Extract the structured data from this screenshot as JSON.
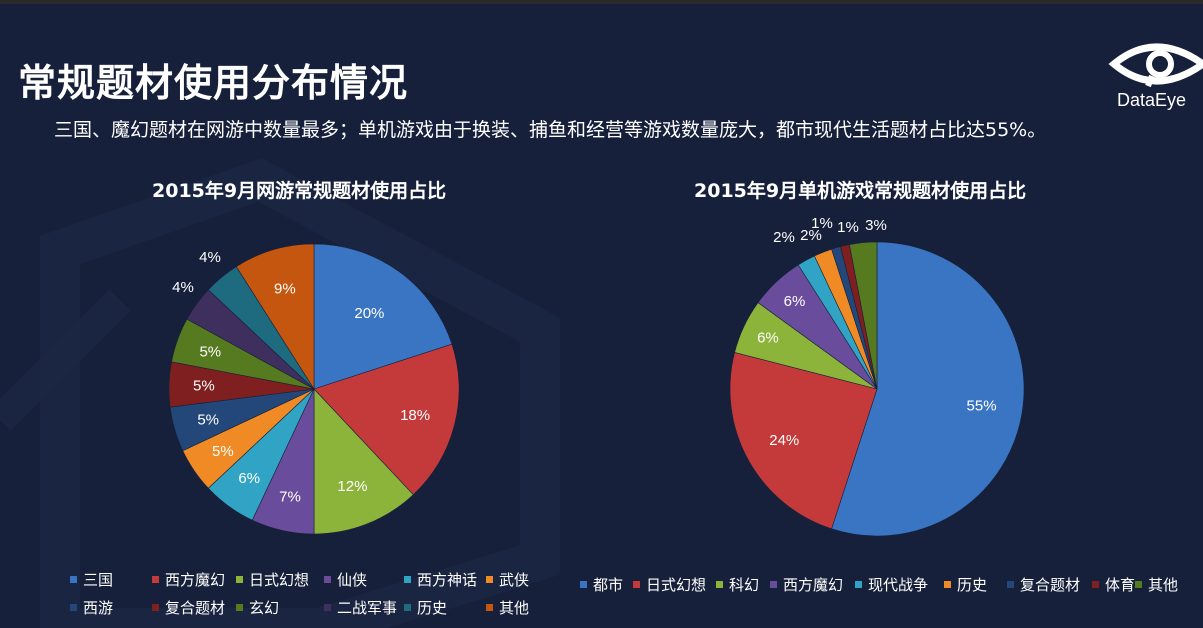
{
  "page": {
    "title": "常规题材使用分布情况",
    "subtitle": "三国、魔幻题材在网游中数量最多；单机游戏由于换装、捕鱼和经营等游戏数量庞大，都市现代生活题材占比达55%。",
    "logo_text": "DataEye"
  },
  "chart_data": [
    {
      "type": "pie",
      "title": "2015年9月网游常规题材使用占比",
      "slices": [
        {
          "label": "三国",
          "value": 20,
          "display": "20%",
          "color": "#3a75c4"
        },
        {
          "label": "西方魔幻",
          "value": 18,
          "display": "18%",
          "color": "#c43a3a"
        },
        {
          "label": "日式幻想",
          "value": 12,
          "display": "12%",
          "color": "#8cb33a"
        },
        {
          "label": "仙侠",
          "value": 7,
          "display": "7%",
          "color": "#6a4c9c"
        },
        {
          "label": "西方神话",
          "value": 6,
          "display": "6%",
          "color": "#31a3c4"
        },
        {
          "label": "武侠",
          "value": 5,
          "display": "5%",
          "color": "#ef8a25"
        },
        {
          "label": "西游",
          "value": 5,
          "display": "5%",
          "color": "#24477a"
        },
        {
          "label": "复合题材",
          "value": 5,
          "display": "5%",
          "color": "#7f1f1f"
        },
        {
          "label": "玄幻",
          "value": 5,
          "display": "5%",
          "color": "#567a1f"
        },
        {
          "label": "二战军事",
          "value": 4,
          "display": "4%",
          "color": "#3f2f5f"
        },
        {
          "label": "历史",
          "value": 4,
          "display": "4%",
          "color": "#1e6a7e"
        },
        {
          "label": "其他",
          "value": 9,
          "display": "9%",
          "color": "#c4560f"
        }
      ],
      "legend": "bottom"
    },
    {
      "type": "pie",
      "title": "2015年9月单机游戏常规题材使用占比",
      "slices": [
        {
          "label": "都市",
          "value": 55,
          "display": "55%",
          "color": "#3a75c4"
        },
        {
          "label": "日式幻想",
          "value": 24,
          "display": "24%",
          "color": "#c43a3a"
        },
        {
          "label": "科幻",
          "value": 6,
          "display": "6%",
          "color": "#8cb33a"
        },
        {
          "label": "西方魔幻",
          "value": 6,
          "display": "6%",
          "color": "#6a4c9c"
        },
        {
          "label": "现代战争",
          "value": 2,
          "display": "2%",
          "color": "#31a3c4"
        },
        {
          "label": "历史",
          "value": 2,
          "display": "2%",
          "color": "#ef8a25"
        },
        {
          "label": "复合题材",
          "value": 1,
          "display": "1%",
          "color": "#24477a"
        },
        {
          "label": "体育",
          "value": 1,
          "display": "1%",
          "color": "#7f1f1f"
        },
        {
          "label": "其他",
          "value": 3,
          "display": "3%",
          "color": "#567a1f"
        }
      ],
      "legend": "bottom"
    }
  ]
}
